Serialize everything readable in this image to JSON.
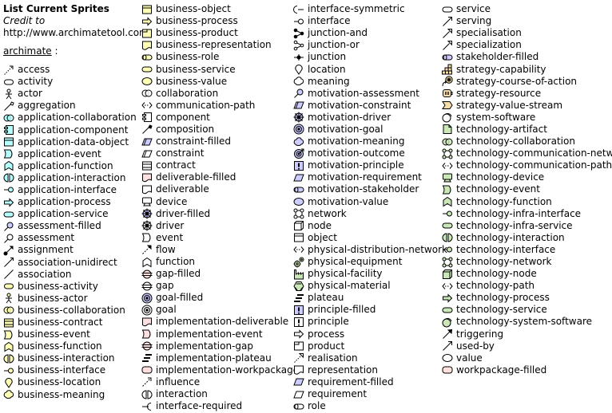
{
  "header": {
    "title": "List Current Sprites",
    "credit_label": "Credit to",
    "credit_url": "http://www.archimatetool.com",
    "section": "archimate",
    "section_suffix": " :"
  },
  "columns": [
    [
      {
        "label": "access",
        "icon": "access",
        "color": ""
      },
      {
        "label": "activity",
        "icon": "activity",
        "color": ""
      },
      {
        "label": "actor",
        "icon": "actor",
        "color": ""
      },
      {
        "label": "aggregation",
        "icon": "aggregation",
        "color": ""
      },
      {
        "label": "application-collaboration",
        "icon": "collaboration",
        "color": "#b5ffff"
      },
      {
        "label": "application-component",
        "icon": "component",
        "color": "#b5ffff"
      },
      {
        "label": "application-data-object",
        "icon": "data-object",
        "color": "#b5ffff"
      },
      {
        "label": "application-event",
        "icon": "event",
        "color": "#b5ffff"
      },
      {
        "label": "application-function",
        "icon": "function",
        "color": "#b5ffff"
      },
      {
        "label": "application-interaction",
        "icon": "interaction",
        "color": "#b5ffff"
      },
      {
        "label": "application-interface",
        "icon": "interface",
        "color": "#b5ffff"
      },
      {
        "label": "application-process",
        "icon": "process",
        "color": "#b5ffff"
      },
      {
        "label": "application-service",
        "icon": "service",
        "color": "#b5ffff"
      },
      {
        "label": "assessment-filled",
        "icon": "assessment",
        "color": "#ccccff"
      },
      {
        "label": "assessment",
        "icon": "assessment",
        "color": "#ffffff"
      },
      {
        "label": "assignment",
        "icon": "assignment",
        "color": ""
      },
      {
        "label": "association-unidirect",
        "icon": "association-unidirect",
        "color": ""
      },
      {
        "label": "association",
        "icon": "association",
        "color": ""
      },
      {
        "label": "business-activity",
        "icon": "activity",
        "color": "#ffffb5"
      },
      {
        "label": "business-actor",
        "icon": "actor",
        "color": "#ffffb5"
      },
      {
        "label": "business-collaboration",
        "icon": "collaboration",
        "color": "#ffffb5"
      },
      {
        "label": "business-contract",
        "icon": "contract",
        "color": "#ffffb5"
      },
      {
        "label": "business-event",
        "icon": "event",
        "color": "#ffffb5"
      },
      {
        "label": "business-function",
        "icon": "function",
        "color": "#ffffb5"
      },
      {
        "label": "business-interaction",
        "icon": "interaction",
        "color": "#ffffb5"
      },
      {
        "label": "business-interface",
        "icon": "interface",
        "color": "#ffffb5"
      },
      {
        "label": "business-location",
        "icon": "location",
        "color": "#ffffb5"
      },
      {
        "label": "business-meaning",
        "icon": "meaning",
        "color": "#ffffb5"
      }
    ],
    [
      {
        "label": "business-object",
        "icon": "data-object",
        "color": "#ffffb5"
      },
      {
        "label": "business-process",
        "icon": "process",
        "color": "#ffffb5"
      },
      {
        "label": "business-product",
        "icon": "product",
        "color": "#ffffb5"
      },
      {
        "label": "business-representation",
        "icon": "representation",
        "color": "#ffffb5"
      },
      {
        "label": "business-role",
        "icon": "role",
        "color": "#ffffb5"
      },
      {
        "label": "business-service",
        "icon": "service",
        "color": "#ffffb5"
      },
      {
        "label": "business-value",
        "icon": "value",
        "color": "#ffffb5"
      },
      {
        "label": "collaboration",
        "icon": "collaboration",
        "color": "#ffffff"
      },
      {
        "label": "communication-path",
        "icon": "path",
        "color": ""
      },
      {
        "label": "component",
        "icon": "component",
        "color": "#ffffff"
      },
      {
        "label": "composition",
        "icon": "composition",
        "color": ""
      },
      {
        "label": "constraint-filled",
        "icon": "constraint",
        "color": "#ccccff"
      },
      {
        "label": "constraint",
        "icon": "constraint",
        "color": "#ffffff"
      },
      {
        "label": "contract",
        "icon": "contract",
        "color": "#ffffff"
      },
      {
        "label": "deliverable-filled",
        "icon": "deliverable",
        "color": "#ffe0e0"
      },
      {
        "label": "deliverable",
        "icon": "deliverable",
        "color": "#ffffff"
      },
      {
        "label": "device",
        "icon": "device",
        "color": "#ffffff"
      },
      {
        "label": "driver-filled",
        "icon": "driver",
        "color": "#ccccff"
      },
      {
        "label": "driver",
        "icon": "driver",
        "color": "#ffffff"
      },
      {
        "label": "event",
        "icon": "event",
        "color": "#ffffff"
      },
      {
        "label": "flow",
        "icon": "flow",
        "color": ""
      },
      {
        "label": "function",
        "icon": "function",
        "color": "#ffffff"
      },
      {
        "label": "gap-filled",
        "icon": "gap",
        "color": "#ffe0e0"
      },
      {
        "label": "gap",
        "icon": "gap",
        "color": "#ffffff"
      },
      {
        "label": "goal-filled",
        "icon": "goal",
        "color": "#ccccff"
      },
      {
        "label": "goal",
        "icon": "goal",
        "color": "#ffffff"
      },
      {
        "label": "implementation-deliverable",
        "icon": "deliverable",
        "color": "#ffe0e0"
      },
      {
        "label": "implementation-event",
        "icon": "event",
        "color": "#ffe0e0"
      },
      {
        "label": "implementation-gap",
        "icon": "gap",
        "color": "#ffe0e0"
      },
      {
        "label": "implementation-plateau",
        "icon": "plateau",
        "color": "#ffe0e0"
      },
      {
        "label": "implementation-workpackage",
        "icon": "workpackage",
        "color": "#ffe0e0"
      },
      {
        "label": "influence",
        "icon": "influence",
        "color": ""
      },
      {
        "label": "interaction",
        "icon": "interaction",
        "color": "#ffffff"
      },
      {
        "label": "interface-required",
        "icon": "interface-required",
        "color": ""
      }
    ],
    [
      {
        "label": "interface-symmetric",
        "icon": "interface-symmetric",
        "color": ""
      },
      {
        "label": "interface",
        "icon": "interface",
        "color": "#ffffff"
      },
      {
        "label": "junction-and",
        "icon": "junction-and",
        "color": ""
      },
      {
        "label": "junction-or",
        "icon": "junction-or",
        "color": ""
      },
      {
        "label": "junction",
        "icon": "junction",
        "color": ""
      },
      {
        "label": "location",
        "icon": "location",
        "color": "#ffffff"
      },
      {
        "label": "meaning",
        "icon": "meaning",
        "color": "#ffffff"
      },
      {
        "label": "motivation-assessment",
        "icon": "assessment",
        "color": "#ccccff"
      },
      {
        "label": "motivation-constraint",
        "icon": "constraint",
        "color": "#ccccff"
      },
      {
        "label": "motivation-driver",
        "icon": "driver",
        "color": "#ccccff"
      },
      {
        "label": "motivation-goal",
        "icon": "goal",
        "color": "#ccccff"
      },
      {
        "label": "motivation-meaning",
        "icon": "meaning",
        "color": "#ccccff"
      },
      {
        "label": "motivation-outcome",
        "icon": "outcome",
        "color": "#ccccff"
      },
      {
        "label": "motivation-principle",
        "icon": "principle",
        "color": "#ccccff"
      },
      {
        "label": "motivation-requirement",
        "icon": "requirement",
        "color": "#ccccff"
      },
      {
        "label": "motivation-stakeholder",
        "icon": "stakeholder",
        "color": "#ccccff"
      },
      {
        "label": "motivation-value",
        "icon": "value",
        "color": "#ccccff"
      },
      {
        "label": "network",
        "icon": "network",
        "color": "#ffffff"
      },
      {
        "label": "node",
        "icon": "node",
        "color": "#ffffff"
      },
      {
        "label": "object",
        "icon": "data-object",
        "color": "#ffffff"
      },
      {
        "label": "physical-distribution-network",
        "icon": "path",
        "color": "#c9e7b7"
      },
      {
        "label": "physical-equipment",
        "icon": "equipment",
        "color": "#c9e7b7"
      },
      {
        "label": "physical-facility",
        "icon": "facility",
        "color": "#c9e7b7"
      },
      {
        "label": "physical-material",
        "icon": "material",
        "color": "#c9e7b7"
      },
      {
        "label": "plateau",
        "icon": "plateau",
        "color": "#ffffff"
      },
      {
        "label": "principle-filled",
        "icon": "principle",
        "color": "#ccccff"
      },
      {
        "label": "principle",
        "icon": "principle",
        "color": "#ffffff"
      },
      {
        "label": "process",
        "icon": "process",
        "color": "#ffffff"
      },
      {
        "label": "product",
        "icon": "product",
        "color": "#ffffff"
      },
      {
        "label": "realisation",
        "icon": "realisation",
        "color": ""
      },
      {
        "label": "representation",
        "icon": "representation",
        "color": "#ffffff"
      },
      {
        "label": "requirement-filled",
        "icon": "requirement",
        "color": "#ccccff"
      },
      {
        "label": "requirement",
        "icon": "requirement",
        "color": "#ffffff"
      },
      {
        "label": "role",
        "icon": "role",
        "color": "#ffffff"
      }
    ],
    [
      {
        "label": "service",
        "icon": "service",
        "color": "#ffffff"
      },
      {
        "label": "serving",
        "icon": "serving",
        "color": ""
      },
      {
        "label": "specialisation",
        "icon": "specialisation",
        "color": ""
      },
      {
        "label": "specialization",
        "icon": "specialisation",
        "color": ""
      },
      {
        "label": "stakeholder-filled",
        "icon": "stakeholder",
        "color": "#ccccff"
      },
      {
        "label": "strategy-capability",
        "icon": "capability",
        "color": "#f5deaa"
      },
      {
        "label": "strategy-course-of-action",
        "icon": "course-of-action",
        "color": "#f5deaa"
      },
      {
        "label": "strategy-resource",
        "icon": "resource",
        "color": "#f5deaa"
      },
      {
        "label": "strategy-value-stream",
        "icon": "value-stream",
        "color": "#f5deaa"
      },
      {
        "label": "system-software",
        "icon": "system-software",
        "color": "#ffffff"
      },
      {
        "label": "technology-artifact",
        "icon": "artifact",
        "color": "#c9e7b7"
      },
      {
        "label": "technology-collaboration",
        "icon": "collaboration",
        "color": "#c9e7b7"
      },
      {
        "label": "technology-communication-network",
        "icon": "network",
        "color": "#c9e7b7"
      },
      {
        "label": "technology-communication-path",
        "icon": "path",
        "color": "#c9e7b7"
      },
      {
        "label": "technology-device",
        "icon": "device",
        "color": "#c9e7b7"
      },
      {
        "label": "technology-event",
        "icon": "event",
        "color": "#c9e7b7"
      },
      {
        "label": "technology-function",
        "icon": "function",
        "color": "#c9e7b7"
      },
      {
        "label": "technology-infra-interface",
        "icon": "interface",
        "color": "#c9e7b7"
      },
      {
        "label": "technology-infra-service",
        "icon": "service",
        "color": "#c9e7b7"
      },
      {
        "label": "technology-interaction",
        "icon": "interaction",
        "color": "#c9e7b7"
      },
      {
        "label": "technology-interface",
        "icon": "interface",
        "color": "#c9e7b7"
      },
      {
        "label": "technology-network",
        "icon": "network",
        "color": "#c9e7b7"
      },
      {
        "label": "technology-node",
        "icon": "node",
        "color": "#c9e7b7"
      },
      {
        "label": "technology-path",
        "icon": "path",
        "color": "#c9e7b7"
      },
      {
        "label": "technology-process",
        "icon": "process",
        "color": "#c9e7b7"
      },
      {
        "label": "technology-service",
        "icon": "service",
        "color": "#c9e7b7"
      },
      {
        "label": "technology-system-software",
        "icon": "system-software",
        "color": "#c9e7b7"
      },
      {
        "label": "triggering",
        "icon": "triggering",
        "color": ""
      },
      {
        "label": "used-by",
        "icon": "used-by",
        "color": ""
      },
      {
        "label": "value",
        "icon": "value",
        "color": "#ffffff"
      },
      {
        "label": "workpackage-filled",
        "icon": "workpackage",
        "color": "#ffe0e0"
      }
    ]
  ]
}
